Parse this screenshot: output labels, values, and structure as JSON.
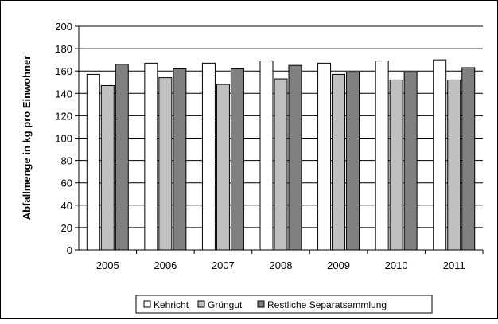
{
  "chart_data": {
    "type": "bar",
    "title": "",
    "xlabel": "",
    "ylabel": "Abfallmenge in kg pro Einwohner",
    "categories": [
      "2005",
      "2006",
      "2007",
      "2008",
      "2009",
      "2010",
      "2011"
    ],
    "ylim": [
      0,
      200
    ],
    "yticks": [
      "0",
      "20",
      "40",
      "60",
      "80",
      "100",
      "120",
      "140",
      "160",
      "180",
      "200"
    ],
    "grid": true,
    "legend_position": "bottom",
    "series": [
      {
        "name": "Kehricht",
        "color": "#ffffff",
        "values": [
          157,
          167,
          167,
          169,
          167,
          169,
          170
        ]
      },
      {
        "name": "Grüngut",
        "color": "#c0c0c0",
        "values": [
          147,
          154,
          148,
          153,
          157,
          152,
          152
        ]
      },
      {
        "name": "Restliche Separatsammlung",
        "color": "#808080",
        "values": [
          166,
          162,
          162,
          165,
          159,
          159,
          163
        ]
      }
    ]
  }
}
